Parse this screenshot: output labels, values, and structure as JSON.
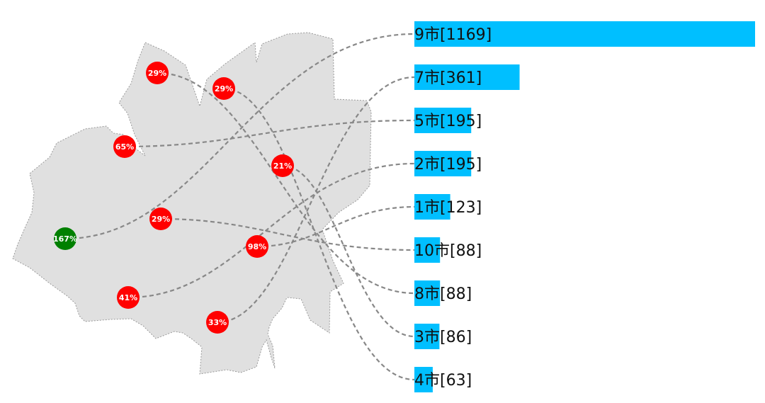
{
  "chart_data": {
    "type": "bar",
    "title": "",
    "bar_color": "#00bfff",
    "bars": [
      {
        "city": "9市",
        "value": 1169
      },
      {
        "city": "7市",
        "value": 361
      },
      {
        "city": "5市",
        "value": 195
      },
      {
        "city": "2市",
        "value": 195
      },
      {
        "city": "1市",
        "value": 123
      },
      {
        "city": "10市",
        "value": 88
      },
      {
        "city": "8市",
        "value": 88
      },
      {
        "city": "3市",
        "value": 86
      },
      {
        "city": "4市",
        "value": 63
      }
    ],
    "bar_labels": [
      "9市[1169]",
      "7市[361]",
      "5市[195]",
      "2市[195]",
      "1市[123]",
      "10市[88]",
      "8市[88]",
      "3市[86]",
      "4市[63]"
    ],
    "map_markers": [
      {
        "label": "167%",
        "target": "9市",
        "color": "#008000"
      },
      {
        "label": "33%",
        "target": "7市",
        "color": "#ff0000"
      },
      {
        "label": "65%",
        "target": "5市",
        "color": "#ff0000"
      },
      {
        "label": "41%",
        "target": "2市",
        "color": "#ff0000"
      },
      {
        "label": "98%",
        "target": "1市",
        "color": "#ff0000"
      },
      {
        "label": "29%",
        "target": "10市",
        "color": "#ff0000"
      },
      {
        "label": "29%",
        "target": "8市",
        "color": "#ff0000"
      },
      {
        "label": "21%",
        "target": "3市",
        "color": "#ff0000"
      },
      {
        "label": "29%",
        "target": "4市",
        "color": "#ff0000"
      }
    ],
    "region_fill": "#e0e0e0",
    "flow_line_color": "#888888"
  }
}
